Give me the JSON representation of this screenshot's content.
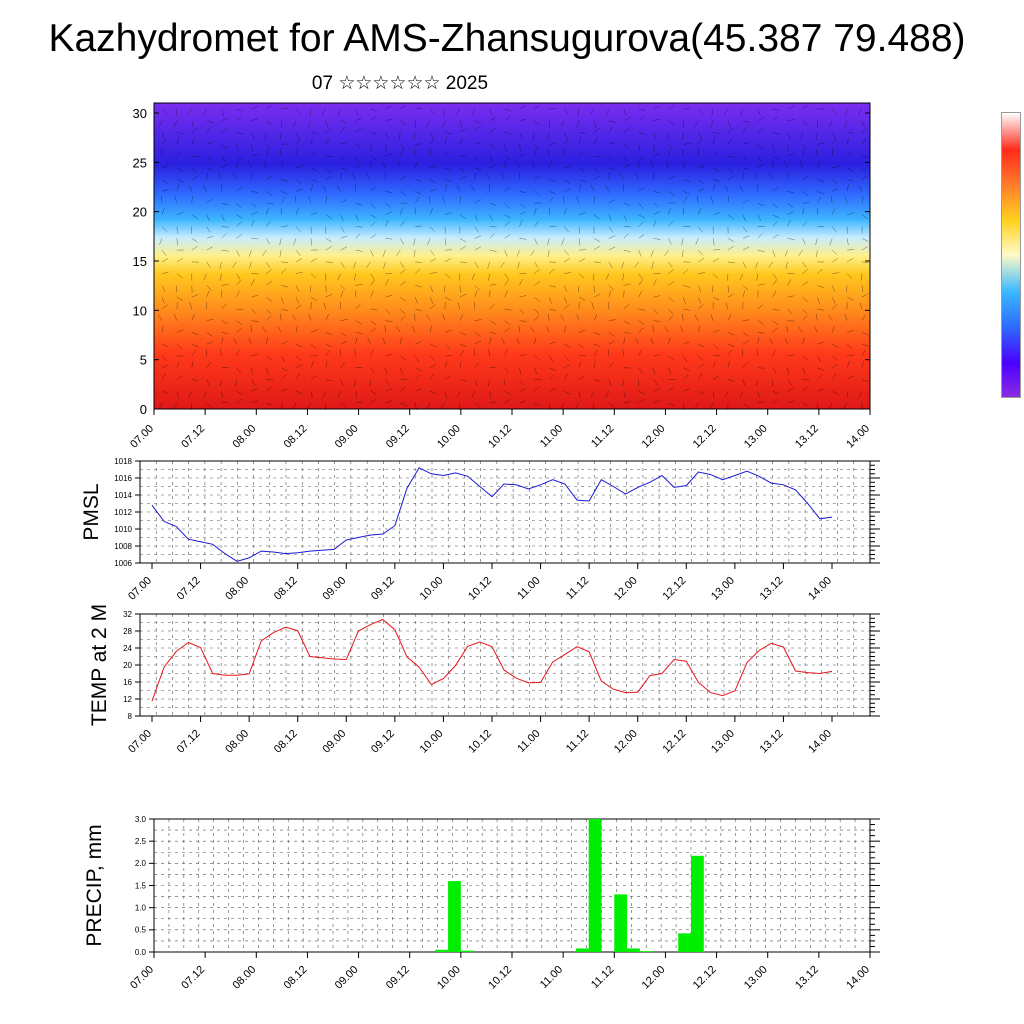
{
  "title": "Kazhydromet for AMS-Zhansugurova(45.387 79.488)",
  "subtitle": "07 ☆☆☆☆☆☆ 2025",
  "colorbar": {
    "colors": [
      "#ffffff",
      "#ff2a1a",
      "#ff7a2a",
      "#ffd21e",
      "#fffac8",
      "#3ab8ff",
      "#2d6dff",
      "#4a00ff",
      "#8a2be2"
    ]
  },
  "time_labels": [
    "07.00",
    "07.12",
    "08.00",
    "08.12",
    "09.00",
    "09.12",
    "10.00",
    "10.12",
    "11.00",
    "11.12",
    "12.00",
    "12.12",
    "13.00",
    "13.12",
    "14.00"
  ],
  "chart_data": [
    {
      "type": "heatmap",
      "name": "",
      "ylim": [
        0,
        30
      ],
      "y_ticks": [
        "0",
        "5",
        "10",
        "15",
        "20",
        "25",
        "30"
      ],
      "x_ticks": [
        "07.00",
        "07.12",
        "08.00",
        "08.12",
        "09.00",
        "09.12",
        "10.00",
        "10.12",
        "11.00",
        "11.12",
        "12.00",
        "12.12",
        "13.00",
        "13.12",
        "14.00"
      ],
      "colors": [
        "#e7291a",
        "#ff6a1c",
        "#ffb01e",
        "#ffee7a",
        "#56c1ff",
        "#3c6cff",
        "#2a1de0",
        "#6a1ff2"
      ],
      "overlay": "wind vectors"
    },
    {
      "type": "line",
      "ylabel": "PMSL",
      "ylim": [
        1006,
        1018
      ],
      "y_ticks": [
        "1006",
        "1008",
        "1010",
        "1012",
        "1014",
        "1016",
        "1018"
      ],
      "x_ticks": [
        "07.00",
        "07.12",
        "08.00",
        "08.12",
        "09.00",
        "09.12",
        "10.00",
        "10.12",
        "11.00",
        "11.12",
        "12.00",
        "12.12",
        "13.00",
        "13.12",
        "14.00"
      ],
      "color": "#1a1ad6",
      "x": [
        0,
        3,
        6,
        9,
        12,
        15,
        18,
        21,
        24,
        27,
        30,
        33,
        36,
        39,
        42,
        45,
        48,
        51,
        54,
        57,
        60,
        63,
        66,
        69,
        72,
        75,
        78,
        81,
        84,
        87,
        90,
        93,
        96,
        99,
        102,
        105,
        108,
        111,
        114,
        117,
        120,
        123,
        126,
        129,
        132,
        135,
        138,
        141,
        144,
        147,
        150,
        153,
        156,
        159,
        162,
        165,
        168
      ],
      "values": [
        1012.8,
        1010.9,
        1010.3,
        1008.8,
        1008.5,
        1008.2,
        1007.1,
        1006.2,
        1006.6,
        1007.4,
        1007.3,
        1007.1,
        1007.2,
        1007.4,
        1007.5,
        1007.6,
        1008.7,
        1009.0,
        1009.3,
        1009.4,
        1010.4,
        1014.8,
        1017.2,
        1016.5,
        1016.3,
        1016.6,
        1016.2,
        1015.0,
        1013.8,
        1015.3,
        1015.2,
        1014.7,
        1015.2,
        1015.8,
        1015.3,
        1013.4,
        1013.3,
        1015.8,
        1015.0,
        1014.1,
        1014.9,
        1015.5,
        1016.3,
        1014.9,
        1015.1,
        1016.7,
        1016.4,
        1015.8,
        1016.3,
        1016.8,
        1016.2,
        1015.4,
        1015.2,
        1014.6,
        1013.0,
        1011.2,
        1011.4
      ]
    },
    {
      "type": "line",
      "ylabel": "TEMP at 2 M",
      "ylim": [
        8,
        32
      ],
      "y_ticks": [
        "8",
        "12",
        "16",
        "20",
        "24",
        "28",
        "32"
      ],
      "x_ticks": [
        "07.00",
        "07.12",
        "08.00",
        "08.12",
        "09.00",
        "09.12",
        "10.00",
        "10.12",
        "11.00",
        "11.12",
        "12.00",
        "12.12",
        "13.00",
        "13.12",
        "14.00"
      ],
      "color": "#e8141c",
      "x": [
        0,
        3,
        6,
        9,
        12,
        15,
        18,
        21,
        24,
        27,
        30,
        33,
        36,
        39,
        42,
        45,
        48,
        51,
        54,
        57,
        60,
        63,
        66,
        69,
        72,
        75,
        78,
        81,
        84,
        87,
        90,
        93,
        96,
        99,
        102,
        105,
        108,
        111,
        114,
        117,
        120,
        123,
        126,
        129,
        132,
        135,
        138,
        141,
        144,
        147,
        150,
        153,
        156,
        159,
        162,
        165,
        168
      ],
      "values": [
        11.5,
        19.5,
        23.2,
        25.3,
        24.1,
        18.0,
        17.6,
        17.6,
        17.9,
        25.7,
        27.6,
        28.9,
        28.1,
        22.0,
        21.7,
        21.4,
        21.3,
        28.0,
        29.5,
        30.7,
        28.3,
        21.9,
        19.5,
        15.4,
        16.8,
        19.9,
        24.4,
        25.4,
        24.3,
        18.8,
        16.9,
        15.8,
        15.9,
        20.7,
        22.5,
        24.3,
        23.1,
        16.2,
        14.3,
        13.5,
        13.6,
        17.5,
        18.0,
        21.3,
        20.9,
        15.9,
        13.5,
        12.8,
        13.9,
        20.6,
        23.4,
        25.1,
        24.2,
        18.6,
        18.2,
        18.0,
        18.5
      ]
    },
    {
      "type": "bar",
      "ylabel": "PRECIP, mm",
      "ylim": [
        0,
        3.0
      ],
      "y_ticks": [
        "0.0",
        "0.5",
        "1.0",
        "1.5",
        "2.0",
        "2.5",
        "3.0"
      ],
      "x_ticks": [
        "07.00",
        "07.12",
        "08.00",
        "08.12",
        "09.00",
        "09.12",
        "10.00",
        "10.12",
        "11.00",
        "11.12",
        "12.00",
        "12.12",
        "13.00",
        "13.12",
        "14.00"
      ],
      "color": "#00ee00",
      "bar_width_hours": 3,
      "x": [
        66,
        69,
        72,
        99,
        102,
        108,
        111,
        114,
        123,
        126
      ],
      "values": [
        0.05,
        1.6,
        0.03,
        0.08,
        3.0,
        1.3,
        0.08,
        0.02,
        0.42,
        2.17
      ]
    }
  ]
}
